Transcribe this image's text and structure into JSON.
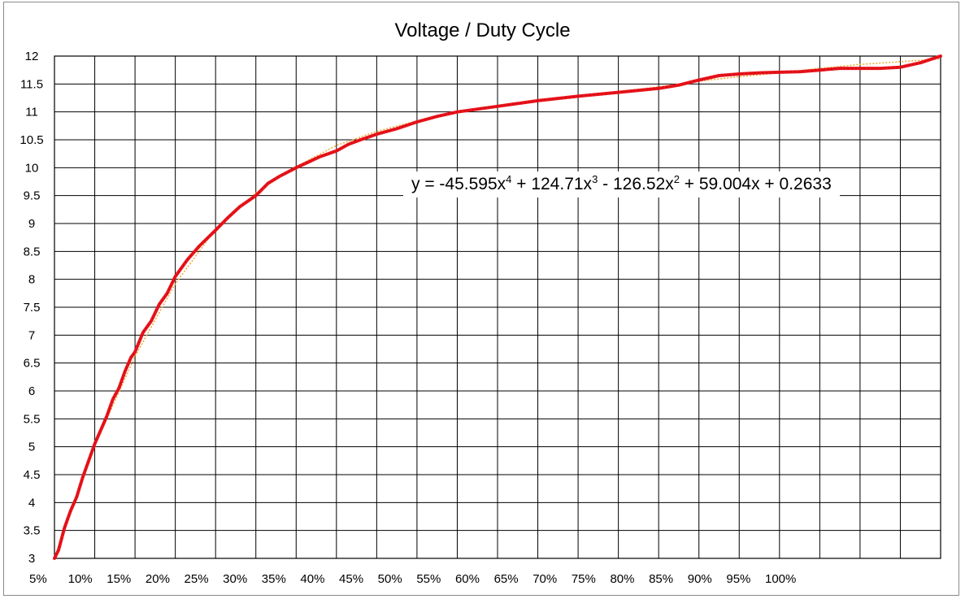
{
  "chart_data": {
    "type": "line",
    "title": "Voltage / Duty Cycle",
    "xlabel": "",
    "ylabel": "",
    "grid": true,
    "legend": "none",
    "x_tick_labels": [
      "5%",
      "10%",
      "15%",
      "20%",
      "25%",
      "30%",
      "35%",
      "40%",
      "45%",
      "50%",
      "55%",
      "60%",
      "65%",
      "70%",
      "75%",
      "80%",
      "85%",
      "90%",
      "95%",
      "100%"
    ],
    "x_categories": 20,
    "y_ticks": [
      "3",
      "3.5",
      "4",
      "4.5",
      "5",
      "5.5",
      "6",
      "6.5",
      "7",
      "7.5",
      "8",
      "8.5",
      "9",
      "9.5",
      "10",
      "10.5",
      "11",
      "11.5",
      "12"
    ],
    "ylim": [
      3,
      12
    ],
    "series": [
      {
        "color": "#e8141c",
        "points": [
          [
            0,
            3.0
          ],
          [
            0.1,
            3.15
          ],
          [
            0.25,
            3.55
          ],
          [
            0.4,
            3.85
          ],
          [
            0.55,
            4.1
          ],
          [
            0.7,
            4.45
          ],
          [
            0.85,
            4.75
          ],
          [
            1,
            5.05
          ],
          [
            1.15,
            5.3
          ],
          [
            1.3,
            5.55
          ],
          [
            1.45,
            5.85
          ],
          [
            1.6,
            6.05
          ],
          [
            1.75,
            6.35
          ],
          [
            1.9,
            6.6
          ],
          [
            2,
            6.7
          ],
          [
            2.2,
            7.05
          ],
          [
            2.4,
            7.25
          ],
          [
            2.6,
            7.55
          ],
          [
            2.8,
            7.75
          ],
          [
            3,
            8.05
          ],
          [
            3.3,
            8.35
          ],
          [
            3.6,
            8.6
          ],
          [
            4,
            8.88
          ],
          [
            4.3,
            9.1
          ],
          [
            4.6,
            9.3
          ],
          [
            5,
            9.5
          ],
          [
            5.3,
            9.72
          ],
          [
            5.6,
            9.85
          ],
          [
            6,
            10.0
          ],
          [
            6.3,
            10.1
          ],
          [
            6.6,
            10.2
          ],
          [
            7,
            10.3
          ],
          [
            7.3,
            10.42
          ],
          [
            7.6,
            10.5
          ],
          [
            8,
            10.6
          ],
          [
            8.5,
            10.7
          ],
          [
            9,
            10.82
          ],
          [
            9.5,
            10.92
          ],
          [
            10,
            11.0
          ],
          [
            11,
            11.1
          ],
          [
            12,
            11.2
          ],
          [
            13,
            11.28
          ],
          [
            14,
            11.35
          ],
          [
            15,
            11.42
          ],
          [
            15.5,
            11.48
          ],
          [
            16,
            11.57
          ],
          [
            16.5,
            11.65
          ],
          [
            17,
            11.68
          ],
          [
            17.5,
            11.7
          ],
          [
            18,
            11.71
          ],
          [
            18.5,
            11.72
          ],
          [
            19,
            11.75
          ],
          [
            19.5,
            11.78
          ],
          [
            20,
            11.78
          ],
          [
            20.5,
            11.78
          ],
          [
            21,
            11.8
          ],
          [
            21.5,
            11.88
          ],
          [
            22,
            12.0
          ]
        ]
      },
      {
        "color": "#f0a830",
        "points": [
          [
            0,
            3.0
          ],
          [
            1,
            5.02
          ],
          [
            2,
            6.62
          ],
          [
            3,
            7.92
          ],
          [
            4,
            8.9
          ],
          [
            5,
            9.55
          ],
          [
            6,
            10.02
          ],
          [
            7,
            10.4
          ],
          [
            8,
            10.65
          ],
          [
            9,
            10.84
          ],
          [
            10,
            10.98
          ],
          [
            11,
            11.1
          ],
          [
            12,
            11.2
          ],
          [
            13,
            11.28
          ],
          [
            14,
            11.36
          ],
          [
            15,
            11.45
          ],
          [
            16,
            11.55
          ],
          [
            17,
            11.63
          ],
          [
            18,
            11.7
          ],
          [
            19,
            11.78
          ],
          [
            20,
            11.85
          ],
          [
            21,
            11.9
          ],
          [
            22,
            11.95
          ]
        ]
      }
    ],
    "annotation": {
      "text_parts": [
        "y = -45.595x",
        "4",
        " + 124.71x",
        "3",
        " - 126.52x",
        "2",
        " + 59.004x + 0.2633"
      ]
    }
  }
}
